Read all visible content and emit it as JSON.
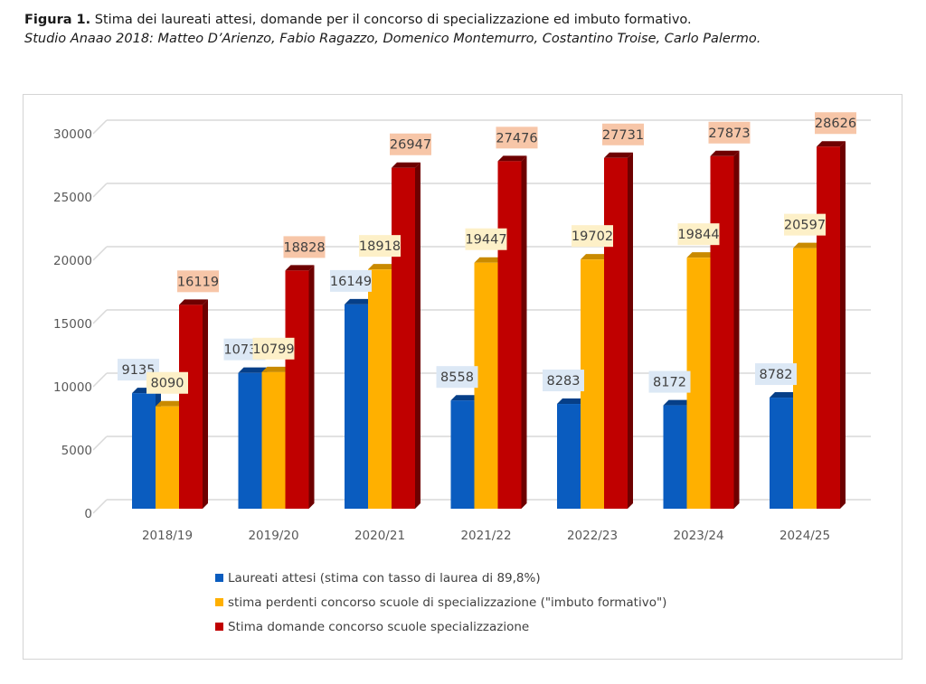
{
  "caption": {
    "label": "Figura 1.",
    "title": " Stima dei laureati attesi, domande per il concorso di specializzazione ed imbuto formativo.",
    "subtitle": "Studio Anaao 2018: Matteo D’Arienzo, Fabio Ragazzo, Domenico Montemurro, Costantino Troise, Carlo Palermo."
  },
  "chart_data": {
    "type": "bar",
    "style": "3d-clustered-column",
    "title": "",
    "xlabel": "",
    "ylabel": "",
    "categories": [
      "2018/19",
      "2019/20",
      "2020/21",
      "2021/22",
      "2022/23",
      "2023/24",
      "2024/25"
    ],
    "series": [
      {
        "name": "Laureati attesi (stima con tasso di laurea di 89,8%)",
        "color": "#0a5cbf",
        "side_color": "#063f88",
        "label_bg": "#dce8f5",
        "values": [
          9135,
          10737,
          16149,
          8558,
          8283,
          8172,
          8782
        ]
      },
      {
        "name": "stima perdenti concorso scuole di specializzazione (\"imbuto formativo\")",
        "color": "#ffb000",
        "side_color": "#c98a00",
        "label_bg": "#fdf0c8",
        "values": [
          8090,
          10799,
          18918,
          19447,
          19702,
          19844,
          20597
        ]
      },
      {
        "name": "Stima domande concorso scuole specializzazione",
        "color": "#c00000",
        "side_color": "#6e0000",
        "label_bg": "#f7c6a8",
        "values": [
          16119,
          18828,
          26947,
          27476,
          27731,
          27873,
          28626
        ]
      }
    ],
    "ylim": [
      0,
      30000
    ],
    "yticks": [
      0,
      5000,
      10000,
      15000,
      20000,
      25000,
      30000
    ],
    "grid": true,
    "legend_position": "bottom"
  }
}
